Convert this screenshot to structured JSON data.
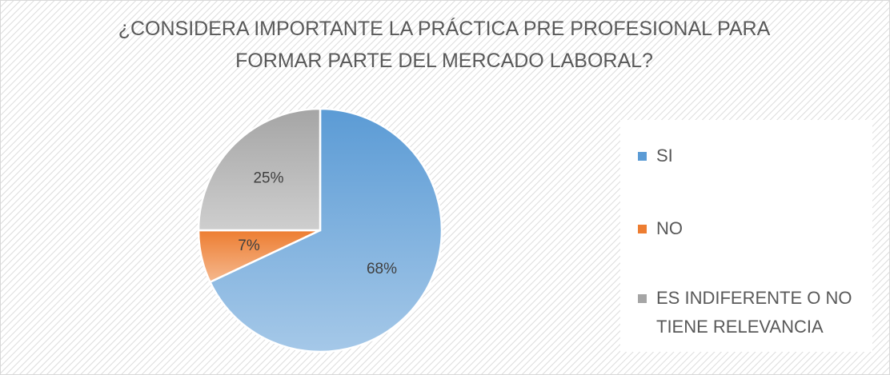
{
  "chart_data": {
    "type": "pie",
    "title": "¿CONSIDERA IMPORTANTE LA PRÁCTICA PRE PROFESIONAL PARA FORMAR PARTE DEL MERCADO LABORAL?",
    "categories": [
      "SI",
      "NO",
      "ES INDIFERENTE O NO TIENE RELEVANCIA"
    ],
    "values": [
      68,
      7,
      25
    ],
    "value_labels": [
      "68%",
      "7%",
      "25%"
    ],
    "colors": [
      "#5b9bd5",
      "#ed7d31",
      "#a5a5a5"
    ],
    "legend": "right"
  }
}
